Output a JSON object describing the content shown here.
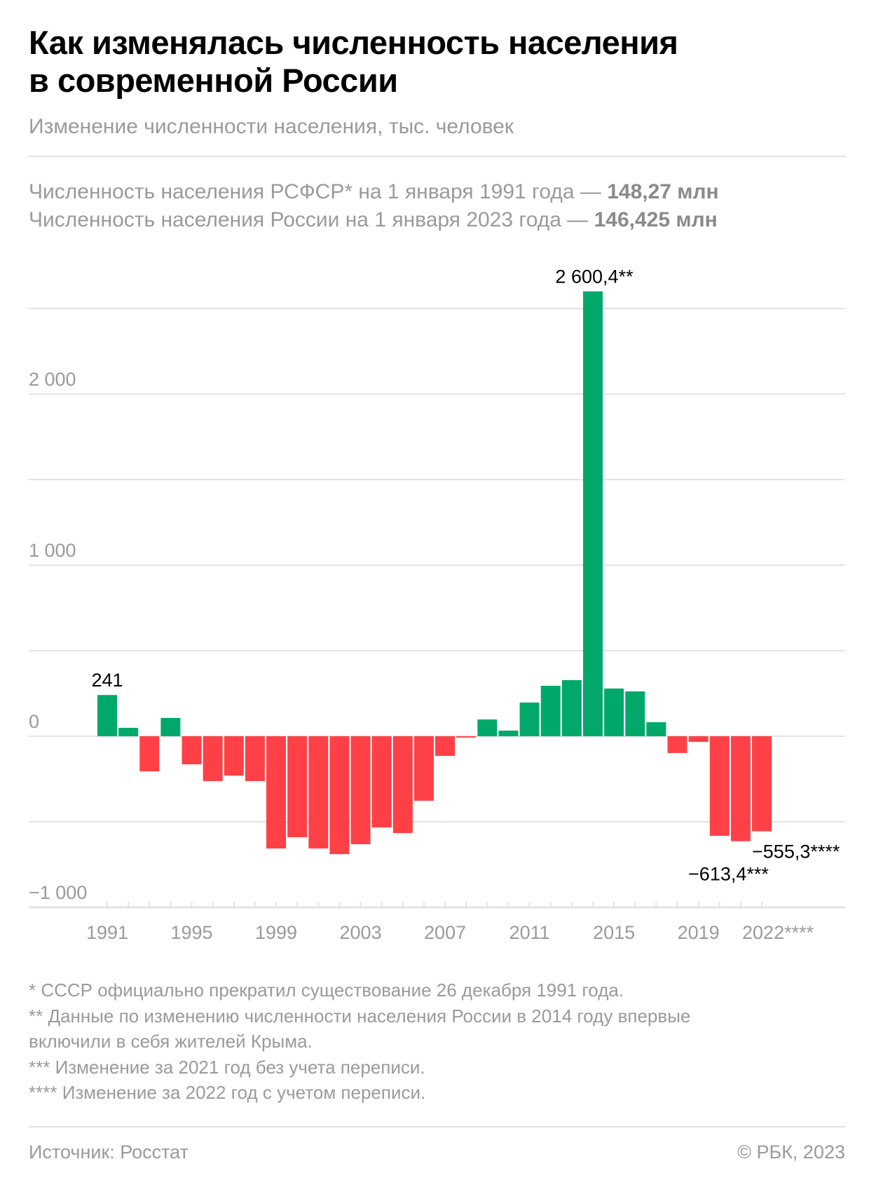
{
  "title_lines": [
    "Как изменялась численность населения",
    "в современной России"
  ],
  "subtitle": "Изменение численности населения, тыс. человек",
  "info": [
    {
      "text": "Численность населения РСФСР* на 1 января 1991 года — ",
      "value": "148,27 млн"
    },
    {
      "text": "Численность населения России на 1 января 2023 года — ",
      "value": "146,425 млн"
    }
  ],
  "footnotes": [
    "* СССР официально прекратил существование 26 декабря 1991 года.",
    "** Данные по изменению численности населения России в 2014 году впервые",
    "включили в себя жителей Крыма.",
    "*** Изменение за 2021 год без учета переписи.",
    "**** Изменение за 2022 год с учетом переписи."
  ],
  "source": "Источник: Росстат",
  "copyright": "© РБК, 2023",
  "colors": {
    "positive": "#00A96B",
    "negative": "#FF4046",
    "grid": "#e3e3e3",
    "axis_text": "#9a9a9a"
  },
  "chart_data": {
    "type": "bar",
    "categories": [
      "1991",
      "1992",
      "1993",
      "1994",
      "1995",
      "1996",
      "1997",
      "1998",
      "1999",
      "2000",
      "2001",
      "2002",
      "2003",
      "2004",
      "2005",
      "2006",
      "2007",
      "2008",
      "2009",
      "2010",
      "2011",
      "2012",
      "2013",
      "2014",
      "2015",
      "2016",
      "2017",
      "2018",
      "2019",
      "2020",
      "2021",
      "2022"
    ],
    "values": [
      241,
      49,
      -205,
      107,
      -164,
      -262,
      -230,
      -262,
      -656,
      -590,
      -656,
      -689,
      -631,
      -533,
      -566,
      -377,
      -115,
      -8,
      98,
      33,
      197,
      295,
      328,
      2600.4,
      279,
      262,
      82,
      -98,
      -33,
      -582,
      -613.4,
      -555.3
    ],
    "ylim": [
      -1000,
      2500
    ],
    "y_gridlines": [
      -1000,
      -500,
      0,
      500,
      1000,
      1500,
      2000,
      2500
    ],
    "y_tick_labels": [
      {
        "value": 2000,
        "label": "2 000"
      },
      {
        "value": 1000,
        "label": "1 000"
      },
      {
        "value": 0,
        "label": "0"
      },
      {
        "value": -1000,
        "label": "−1 000"
      }
    ],
    "x_tick_labels": [
      {
        "index": 0,
        "label": "1991"
      },
      {
        "index": 4,
        "label": "1995"
      },
      {
        "index": 8,
        "label": "1999"
      },
      {
        "index": 12,
        "label": "2003"
      },
      {
        "index": 16,
        "label": "2007"
      },
      {
        "index": 20,
        "label": "2011"
      },
      {
        "index": 24,
        "label": "2015"
      },
      {
        "index": 28,
        "label": "2019"
      },
      {
        "index": 31,
        "label": "2022****"
      }
    ],
    "data_labels": [
      {
        "index": 0,
        "label": "241"
      },
      {
        "index": 23,
        "label": "2 600,4**"
      },
      {
        "index": 30,
        "label": "−613,4***"
      },
      {
        "index": 31,
        "label": "−555,3****"
      }
    ],
    "grid": true,
    "legend": "none"
  }
}
